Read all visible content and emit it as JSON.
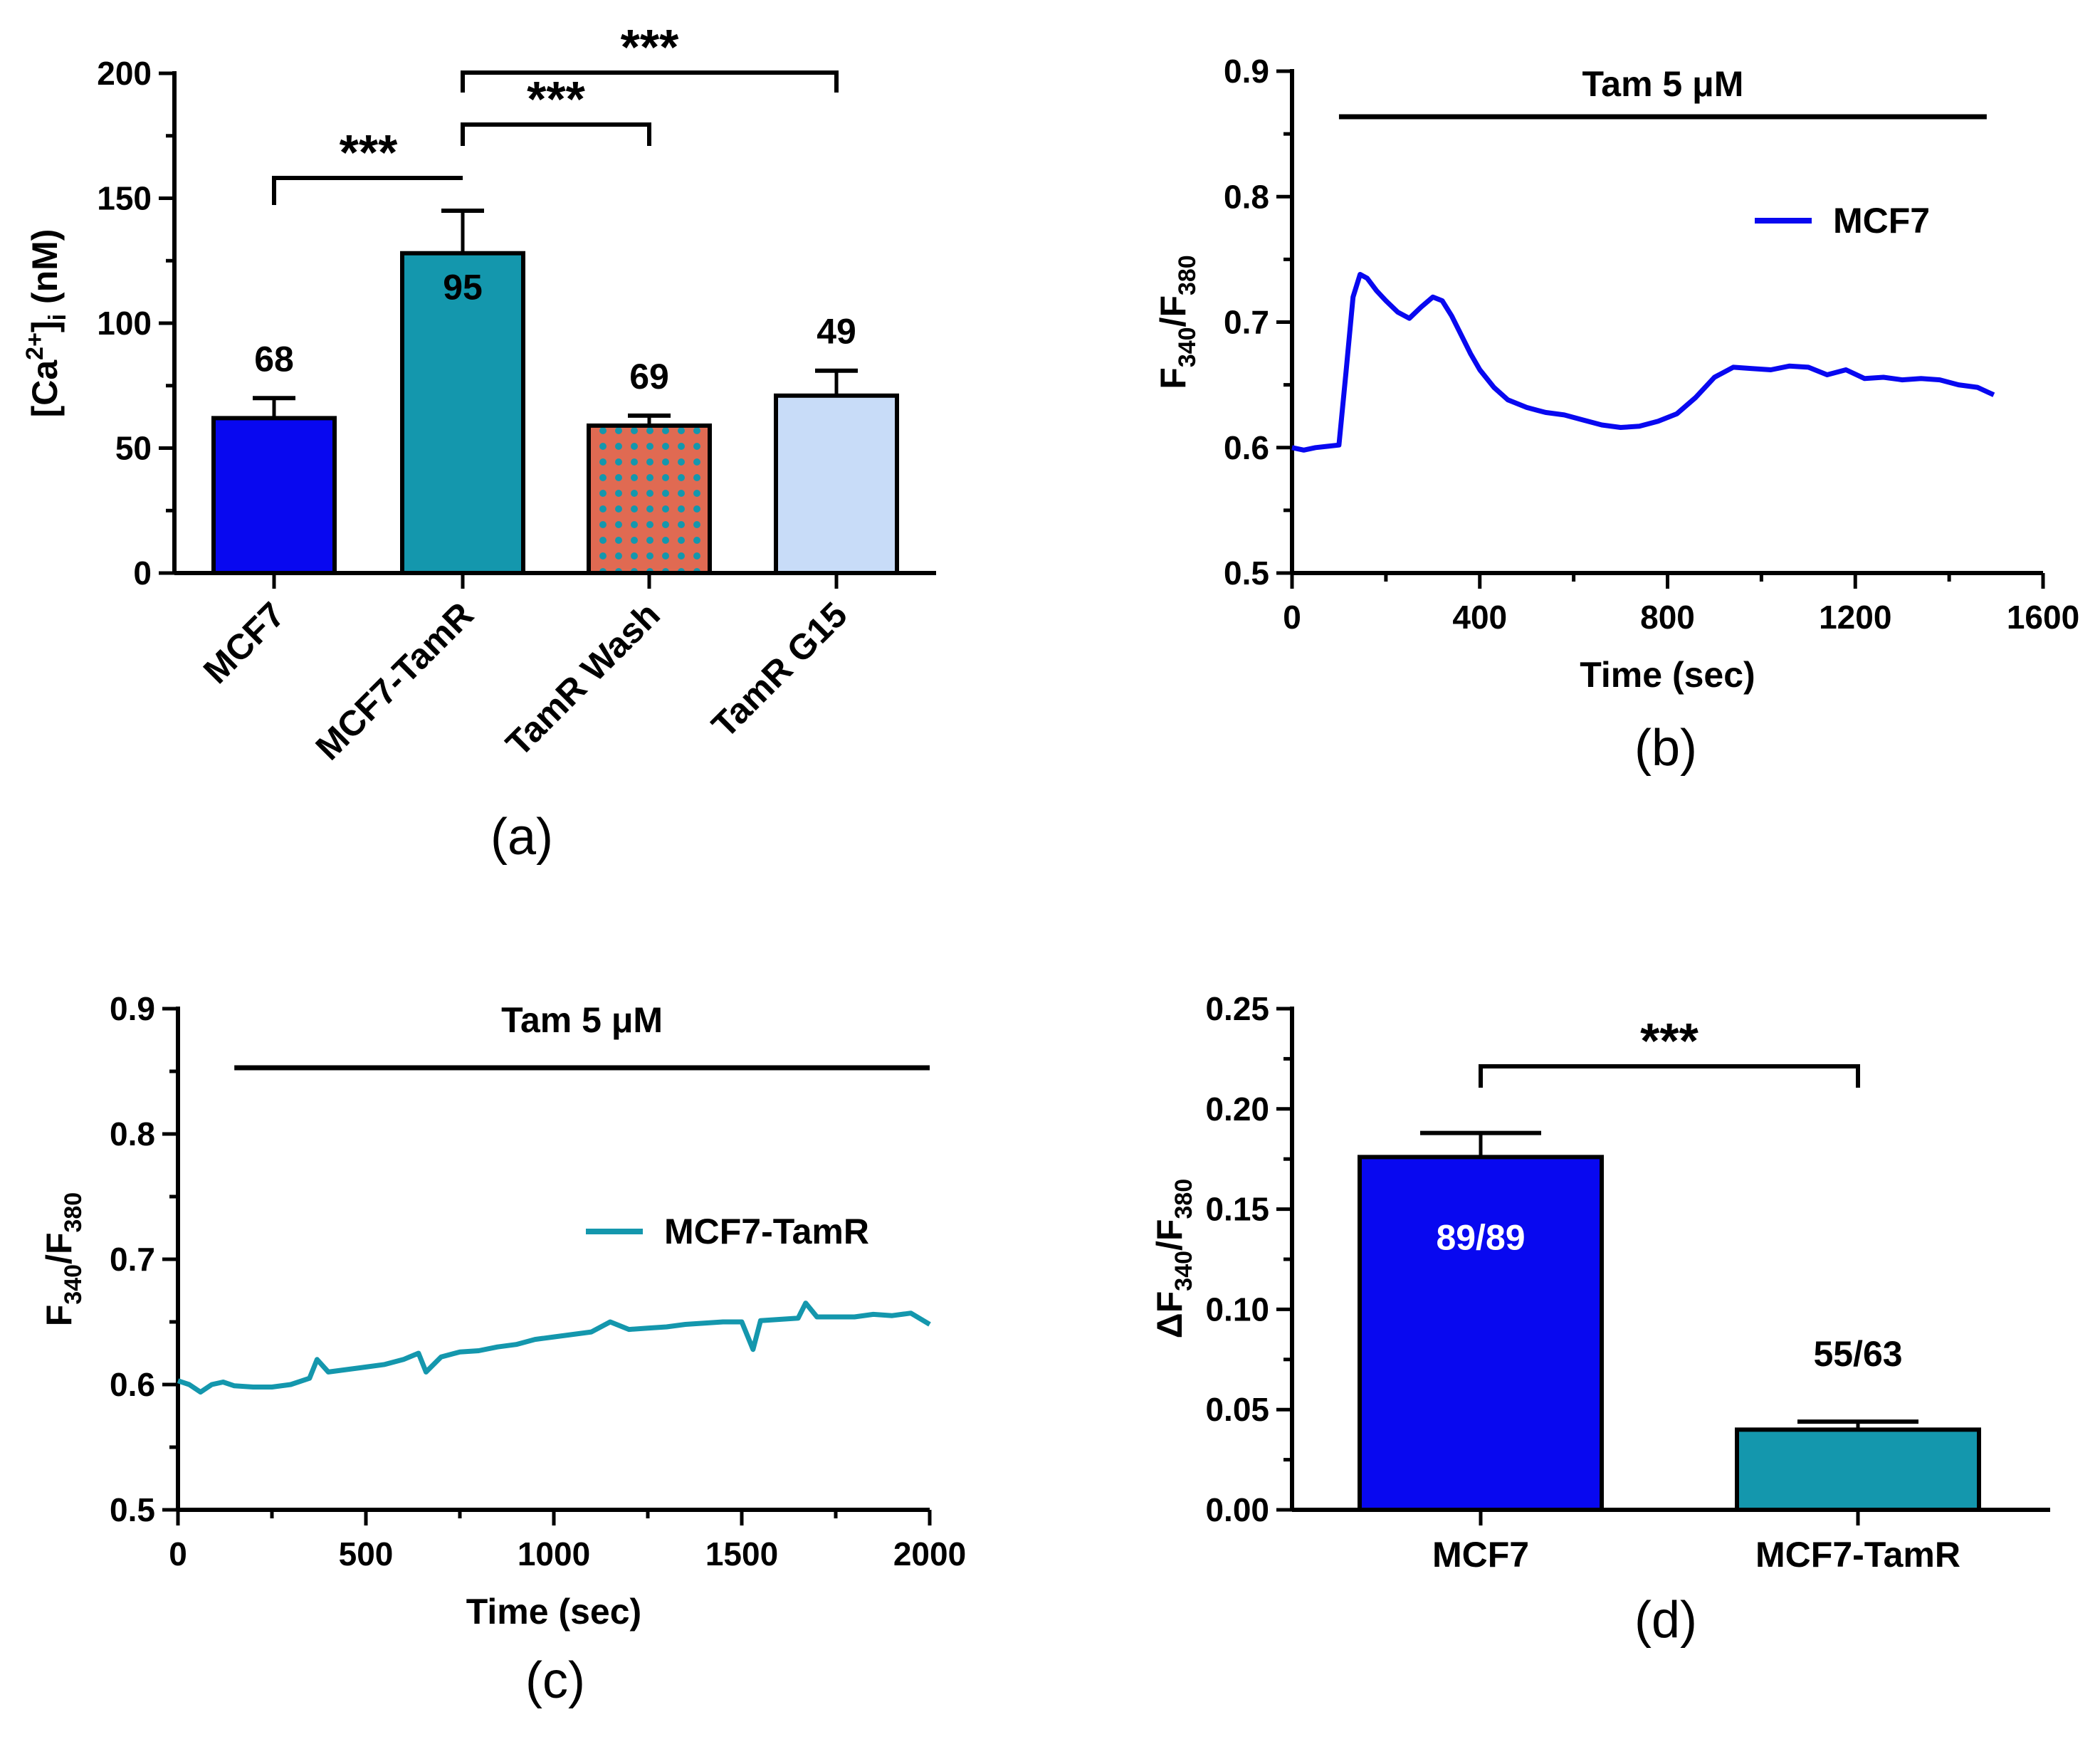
{
  "colors": {
    "mcf7": "#0808f0",
    "tamr": "#1497ad",
    "wash_bg": "#e06a52",
    "wash_dot": "#1497ad",
    "g15": "#c8dcf8",
    "black": "#000000",
    "white_text": "#ffffff"
  },
  "chart_data": [
    {
      "id": "a",
      "type": "bar",
      "panel_label": "(a)",
      "ylabel": "[Ca²⁺]ᵢ (nM)",
      "ylim": [
        0,
        200
      ],
      "yticks": [
        0,
        50,
        100,
        150,
        200
      ],
      "categories": [
        "MCF7",
        "MCF7-TamR",
        "TamR Wash",
        "TamR G15"
      ],
      "values": [
        62,
        128,
        59,
        71
      ],
      "errors": [
        8,
        17,
        4,
        10
      ],
      "n_labels": [
        "68",
        "95",
        "69",
        "49"
      ],
      "significance": [
        {
          "from": "MCF7",
          "to": "MCF7-TamR",
          "label": "***"
        },
        {
          "from": "MCF7-TamR",
          "to": "TamR Wash",
          "label": "***"
        },
        {
          "from": "MCF7-TamR",
          "to": "TamR G15",
          "label": "***"
        }
      ]
    },
    {
      "id": "b",
      "type": "line",
      "panel_label": "(b)",
      "xlabel": "Time (sec)",
      "ylabel": "F340/F380",
      "xlim": [
        0,
        1600
      ],
      "ylim": [
        0.5,
        0.9
      ],
      "xticks": [
        0,
        400,
        800,
        1200,
        1600
      ],
      "yticks": [
        0.5,
        0.6,
        0.7,
        0.8,
        0.9
      ],
      "treatment": {
        "label": "Tam 5 μM",
        "start": 100,
        "end": 1480
      },
      "legend": "MCF7",
      "legend_position": "top-right",
      "series": [
        {
          "name": "MCF7",
          "x": [
            0,
            25,
            50,
            75,
            100,
            115,
            130,
            145,
            160,
            180,
            200,
            225,
            250,
            275,
            300,
            320,
            340,
            360,
            380,
            400,
            430,
            460,
            500,
            540,
            580,
            620,
            660,
            700,
            740,
            780,
            820,
            860,
            900,
            940,
            980,
            1020,
            1060,
            1100,
            1140,
            1180,
            1220,
            1260,
            1300,
            1340,
            1380,
            1420,
            1460,
            1495
          ],
          "y": [
            0.6,
            0.598,
            0.6,
            0.601,
            0.602,
            0.66,
            0.72,
            0.738,
            0.735,
            0.725,
            0.717,
            0.708,
            0.703,
            0.712,
            0.72,
            0.717,
            0.705,
            0.69,
            0.675,
            0.662,
            0.648,
            0.638,
            0.632,
            0.628,
            0.626,
            0.622,
            0.618,
            0.616,
            0.617,
            0.621,
            0.627,
            0.64,
            0.656,
            0.664,
            0.663,
            0.662,
            0.665,
            0.664,
            0.658,
            0.662,
            0.655,
            0.656,
            0.654,
            0.655,
            0.654,
            0.65,
            0.648,
            0.642
          ]
        }
      ]
    },
    {
      "id": "c",
      "type": "line",
      "panel_label": "(c)",
      "xlabel": "Time (sec)",
      "ylabel": "F340/F380",
      "xlim": [
        0,
        2000
      ],
      "ylim": [
        0.5,
        0.9
      ],
      "xticks": [
        0,
        500,
        1000,
        1500,
        2000
      ],
      "yticks": [
        0.5,
        0.6,
        0.7,
        0.8,
        0.9
      ],
      "treatment": {
        "label": "Tam 5 μM",
        "start": 150,
        "end": 2000
      },
      "legend": "MCF7-TamR",
      "legend_position": "center-right",
      "series": [
        {
          "name": "MCF7-TamR",
          "x": [
            0,
            30,
            60,
            90,
            120,
            150,
            200,
            250,
            300,
            350,
            370,
            400,
            450,
            500,
            550,
            600,
            640,
            660,
            700,
            750,
            800,
            850,
            900,
            950,
            1000,
            1050,
            1100,
            1150,
            1200,
            1250,
            1300,
            1350,
            1400,
            1450,
            1500,
            1530,
            1550,
            1600,
            1650,
            1670,
            1700,
            1750,
            1800,
            1850,
            1900,
            1950,
            2000
          ],
          "y": [
            0.603,
            0.6,
            0.594,
            0.6,
            0.602,
            0.599,
            0.598,
            0.598,
            0.6,
            0.605,
            0.62,
            0.61,
            0.612,
            0.614,
            0.616,
            0.62,
            0.625,
            0.61,
            0.622,
            0.626,
            0.627,
            0.63,
            0.632,
            0.636,
            0.638,
            0.64,
            0.642,
            0.65,
            0.644,
            0.645,
            0.646,
            0.648,
            0.649,
            0.65,
            0.65,
            0.628,
            0.651,
            0.652,
            0.653,
            0.665,
            0.654,
            0.654,
            0.654,
            0.656,
            0.655,
            0.657,
            0.648
          ]
        }
      ]
    },
    {
      "id": "d",
      "type": "bar",
      "panel_label": "(d)",
      "ylabel": "ΔF340/F380",
      "ylim": [
        0,
        0.25
      ],
      "yticks": [
        0.0,
        0.05,
        0.1,
        0.15,
        0.2,
        0.25
      ],
      "ytick_labels": [
        "0.00",
        "0.05",
        "0.10",
        "0.15",
        "0.20",
        "0.25"
      ],
      "categories": [
        "MCF7",
        "MCF7-TamR"
      ],
      "values": [
        0.176,
        0.04
      ],
      "errors": [
        0.012,
        0.004
      ],
      "n_labels": [
        "89/89",
        "55/63"
      ],
      "significance": [
        {
          "from": "MCF7",
          "to": "MCF7-TamR",
          "label": "***"
        }
      ]
    }
  ]
}
